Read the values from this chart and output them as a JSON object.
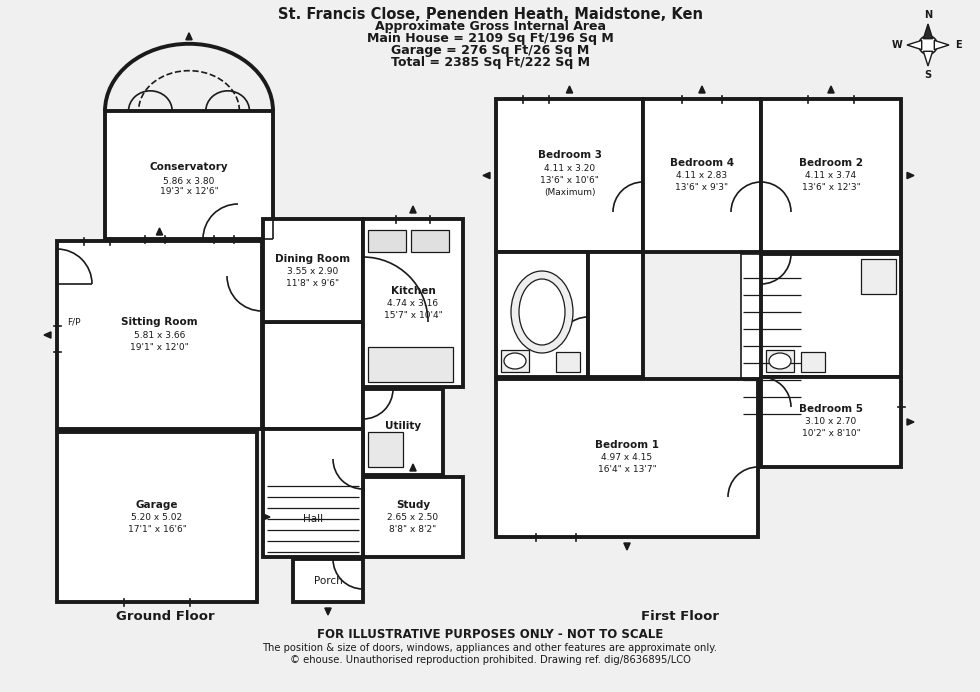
{
  "title_line1": "St. Francis Close, Penenden Heath, Maidstone, Ken",
  "title_line2": "Approximate Gross Internal Area",
  "title_line3": "Main House = 2109 Sq Ft/196 Sq M",
  "title_line4": "Garage = 276 Sq Ft/26 Sq M",
  "title_line5": "Total = 2385 Sq Ft/222 Sq M",
  "footer_bold": "FOR ILLUSTRATIVE PURPOSES ONLY - NOT TO SCALE",
  "footer_line1": "The position & size of doors, windows, appliances and other features are approximate only.",
  "footer_line2": "© ehouse. Unauthorised reproduction prohibited. Drawing ref. dig/8636895/LCO",
  "ground_floor_label": "Ground Floor",
  "first_floor_label": "First Floor",
  "bg_color": "#f0f0f0",
  "wall_color": "#1a1a1a",
  "room_fill": "#ffffff",
  "lw_thick": 2.8,
  "lw_thin": 1.2,
  "lw_detail": 0.9,
  "rooms_ground": {
    "conservatory": {
      "label": "Conservatory",
      "dim1": "5.86 x 3.80",
      "dim2": "19'3\" x 12'6\""
    },
    "sitting_room": {
      "label": "Sitting Room",
      "dim1": "5.81 x 3.66",
      "dim2": "19'1\" x 12'0\""
    },
    "dining_room": {
      "label": "Dining Room",
      "dim1": "3.55 x 2.90",
      "dim2": "11'8\" x 9'6\""
    },
    "kitchen": {
      "label": "Kitchen",
      "dim1": "4.74 x 3.16",
      "dim2": "15'7\" x 10'4\""
    },
    "utility": {
      "label": "Utility"
    },
    "study": {
      "label": "Study",
      "dim1": "2.65 x 2.50",
      "dim2": "8'8\" x 8'2\""
    },
    "hall": {
      "label": "Hall"
    },
    "porch": {
      "label": "Porch"
    },
    "garage": {
      "label": "Garage",
      "dim1": "5.20 x 5.02",
      "dim2": "17'1\" x 16'6\""
    }
  },
  "rooms_first": {
    "bedroom1": {
      "label": "Bedroom 1",
      "dim1": "4.97 x 4.15",
      "dim2": "16'4\" x 13'7\""
    },
    "bedroom2": {
      "label": "Bedroom 2",
      "dim1": "4.11 x 3.74",
      "dim2": "13'6\" x 12'3\""
    },
    "bedroom3": {
      "label": "Bedroom 3",
      "dim1": "4.11 x 3.20",
      "dim2": "13'6\" x 10'6\"",
      "dim3": "(Maximum)"
    },
    "bedroom4": {
      "label": "Bedroom 4",
      "dim1": "4.11 x 2.83",
      "dim2": "13'6\" x 9'3\""
    },
    "bedroom5": {
      "label": "Bedroom 5",
      "dim1": "3.10 x 2.70",
      "dim2": "10'2\" x 8'10\""
    }
  }
}
